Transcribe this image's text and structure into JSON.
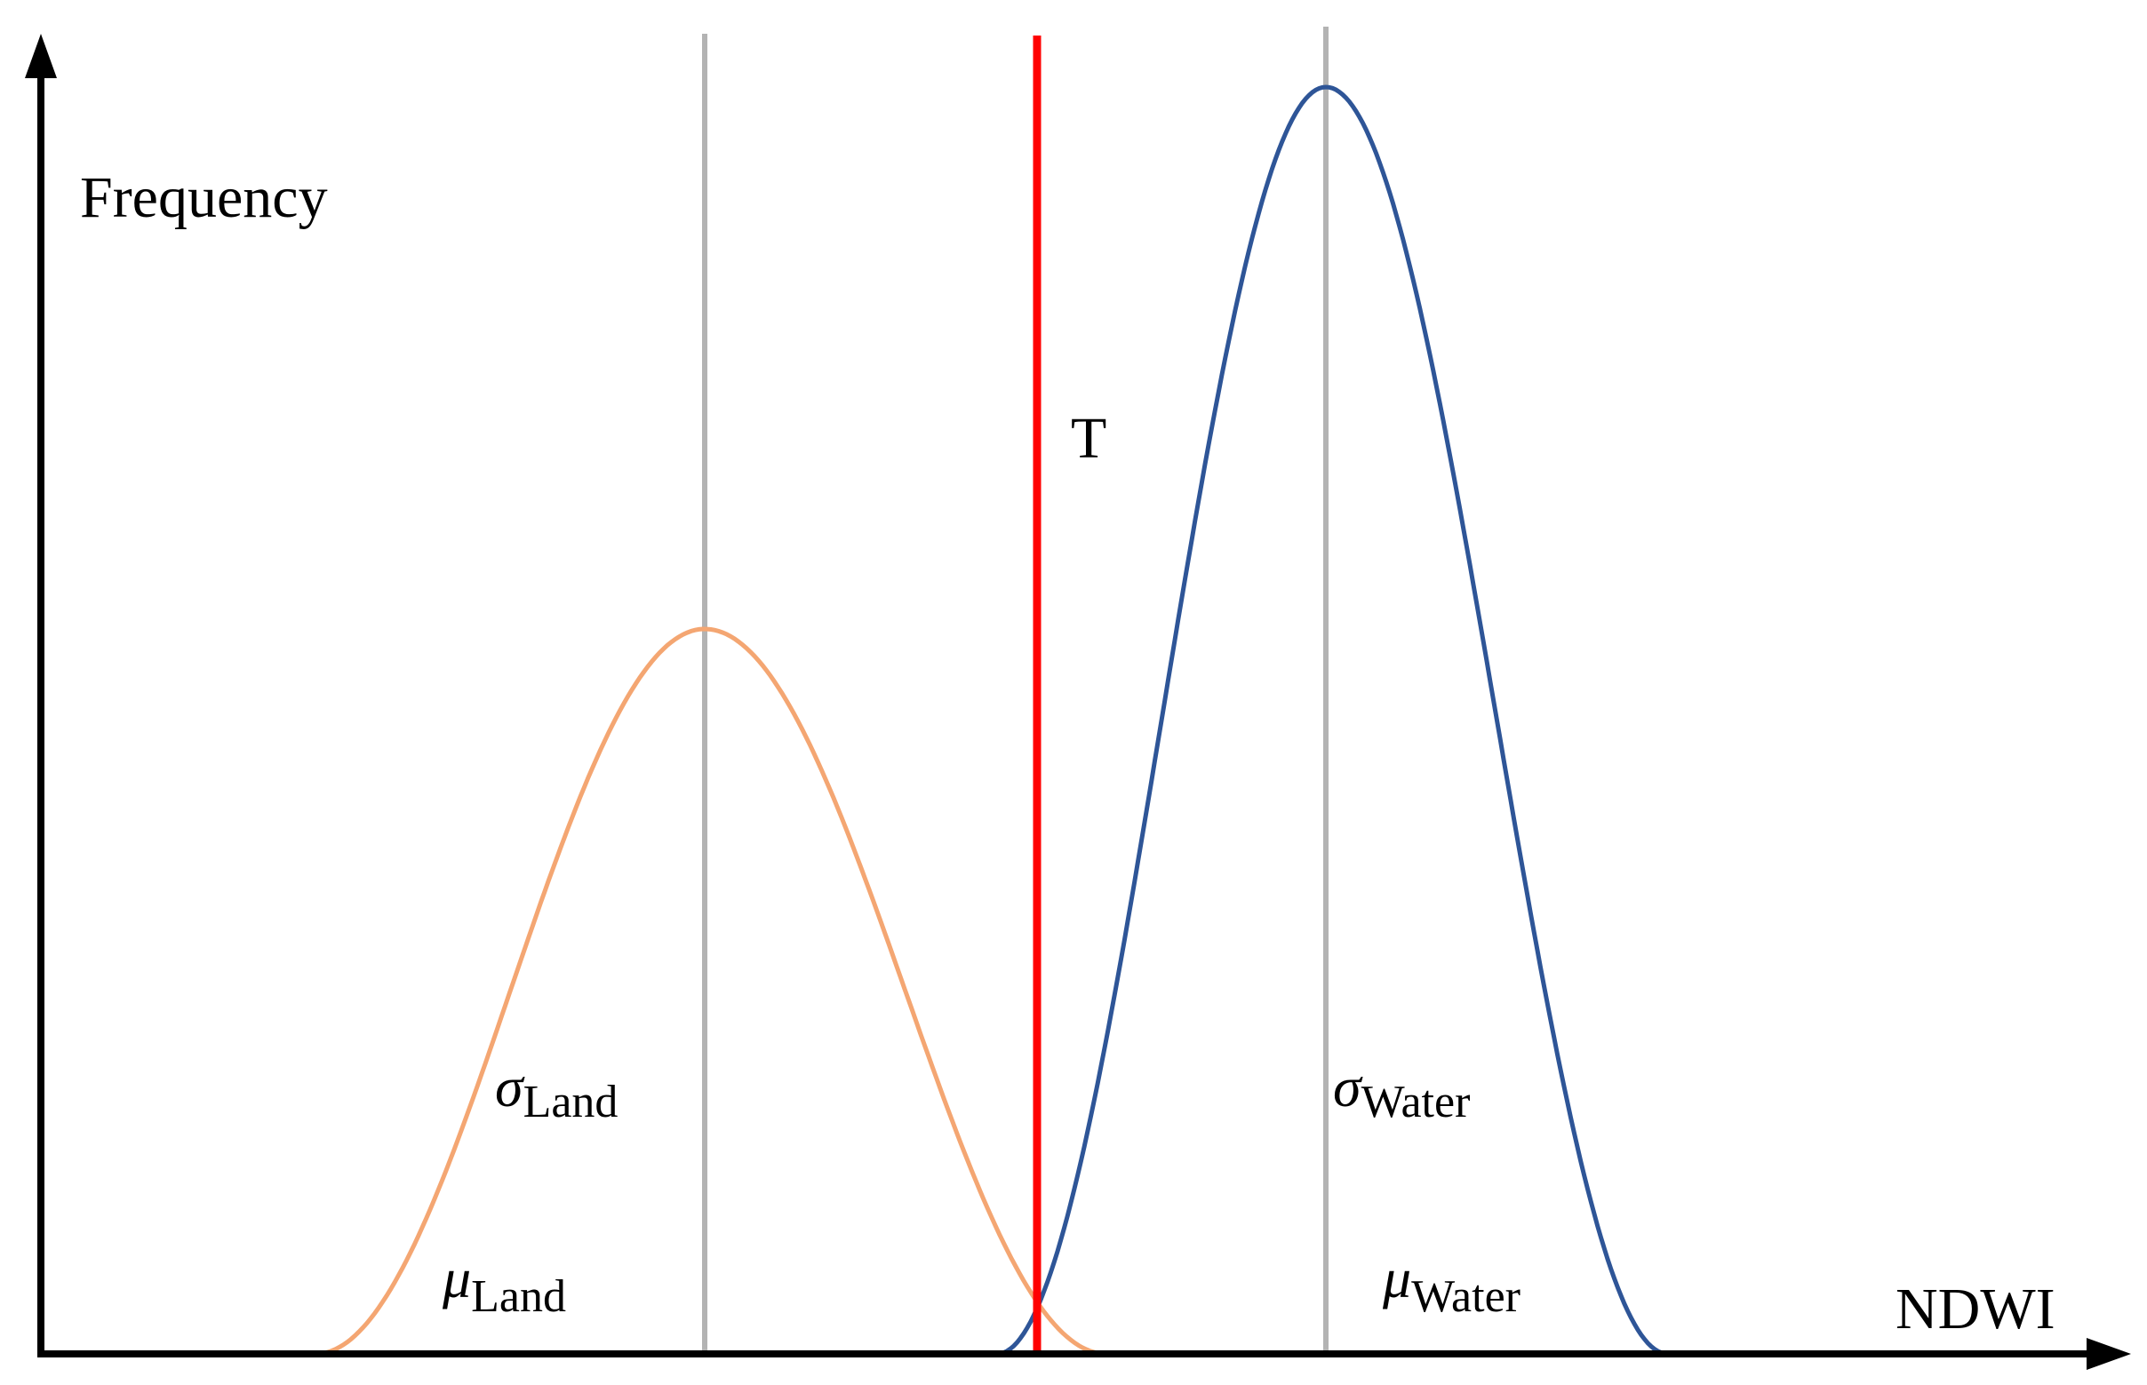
{
  "chart_data": {
    "type": "line",
    "title": "",
    "xlabel": "NDWI",
    "ylabel": "Frequency",
    "grid": false,
    "legend": "none",
    "threshold": {
      "label": "T",
      "color": "#ff0000"
    },
    "series": [
      {
        "id": "land",
        "color": "#f4a672",
        "mean_label": {
          "symbol": "μ",
          "subscript": "Land"
        },
        "sd_label": {
          "symbol": "σ",
          "subscript": "Land"
        }
      },
      {
        "id": "water",
        "color": "#2e5597",
        "mean_label": {
          "symbol": "μ",
          "subscript": "Water"
        },
        "sd_label": {
          "symbol": "σ",
          "subscript": "Water"
        }
      }
    ],
    "mean_line_color": "#b3b3b3",
    "axis_color": "#000000"
  }
}
